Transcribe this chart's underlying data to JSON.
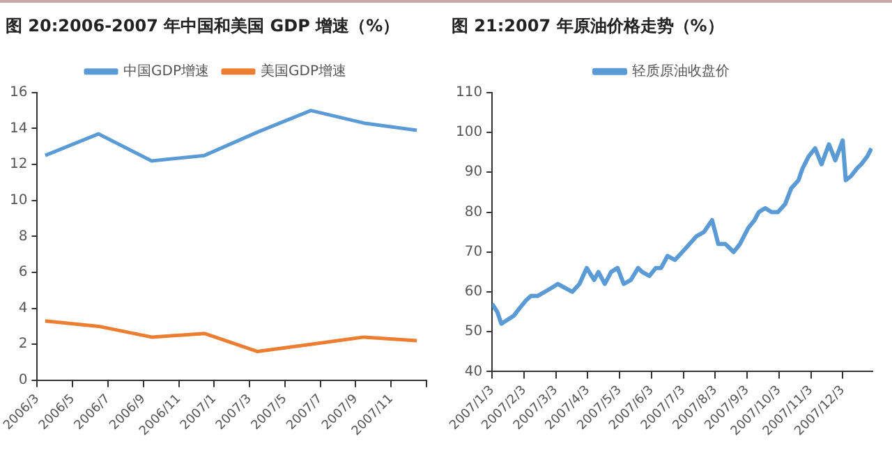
{
  "chart_data": [
    {
      "type": "line",
      "title": "图 20:2006-2007 年中国和美国 GDP 增速（%）",
      "legend": "top",
      "marker": "none",
      "grid": false,
      "x": [
        "2006-03-15",
        "2006-06-15",
        "2006-09-15",
        "2006-12-15",
        "2007-03-15",
        "2007-06-15",
        "2007-09-15",
        "2007-12-15"
      ],
      "series": [
        {
          "name": "中国GDP增速",
          "color": "#5b9bd5",
          "values": [
            12.5,
            13.7,
            12.2,
            12.5,
            13.8,
            15.0,
            14.3,
            13.9
          ]
        },
        {
          "name": "美国GDP增速",
          "color": "#ed7d31",
          "values": [
            3.3,
            3.0,
            2.4,
            2.6,
            1.6,
            2.0,
            2.4,
            2.2
          ]
        }
      ],
      "xlim": [
        "2006-03-01",
        "2008-01-01"
      ],
      "xticks": [
        {
          "value": "2006-03-01",
          "label": "2006/3"
        },
        {
          "value": "2006-05-01",
          "label": "2006/5"
        },
        {
          "value": "2006-07-01",
          "label": "2006/7"
        },
        {
          "value": "2006-09-01",
          "label": "2006/9"
        },
        {
          "value": "2006-11-01",
          "label": "2006/11"
        },
        {
          "value": "2007-01-01",
          "label": "2007/1"
        },
        {
          "value": "2007-03-01",
          "label": "2007/3"
        },
        {
          "value": "2007-05-01",
          "label": "2007/5"
        },
        {
          "value": "2007-07-01",
          "label": "2007/7"
        },
        {
          "value": "2007-09-01",
          "label": "2007/9"
        },
        {
          "value": "2007-11-01",
          "label": "2007/11"
        },
        {
          "value": "2008-01-01",
          "label": null
        }
      ],
      "ylim": [
        0,
        16
      ],
      "yticks": [
        0,
        2,
        4,
        6,
        8,
        10,
        12,
        14,
        16
      ]
    },
    {
      "type": "line",
      "title": "图 21:2007 年原油价格走势（%）",
      "legend": "top",
      "marker": "none",
      "grid": false,
      "x": [
        "2007-01-03",
        "2007-01-08",
        "2007-01-12",
        "2007-01-18",
        "2007-01-24",
        "2007-01-30",
        "2007-02-05",
        "2007-02-09",
        "2007-02-15",
        "2007-02-21",
        "2007-02-27",
        "2007-03-05",
        "2007-03-12",
        "2007-03-19",
        "2007-03-26",
        "2007-04-02",
        "2007-04-09",
        "2007-04-13",
        "2007-04-19",
        "2007-04-25",
        "2007-05-01",
        "2007-05-07",
        "2007-05-14",
        "2007-05-21",
        "2007-05-25",
        "2007-06-01",
        "2007-06-07",
        "2007-06-12",
        "2007-06-18",
        "2007-06-25",
        "2007-07-02",
        "2007-07-09",
        "2007-07-16",
        "2007-07-23",
        "2007-07-31",
        "2007-08-06",
        "2007-08-13",
        "2007-08-21",
        "2007-08-27",
        "2007-09-04",
        "2007-09-10",
        "2007-09-14",
        "2007-09-20",
        "2007-09-26",
        "2007-10-02",
        "2007-10-09",
        "2007-10-15",
        "2007-10-22",
        "2007-10-26",
        "2007-11-01",
        "2007-11-07",
        "2007-11-13",
        "2007-11-20",
        "2007-11-26",
        "2007-12-03",
        "2007-12-06",
        "2007-12-11",
        "2007-12-17",
        "2007-12-21",
        "2007-12-27",
        "2007-12-31"
      ],
      "series": [
        {
          "name": "轻质原油收盘价",
          "color": "#5b9bd5",
          "values": [
            57,
            55,
            52,
            53,
            54,
            56,
            58,
            59,
            59,
            60,
            61,
            62,
            61,
            60,
            62,
            66,
            63,
            65,
            62,
            65,
            66,
            62,
            63,
            66,
            65,
            64,
            66,
            66,
            69,
            68,
            70,
            72,
            74,
            75,
            78,
            72,
            72,
            70,
            72,
            76,
            78,
            80,
            81,
            80,
            80,
            82,
            86,
            88,
            91,
            94,
            96,
            92,
            97,
            93,
            98,
            88,
            89,
            91,
            92,
            94,
            96
          ]
        }
      ],
      "xlim": [
        "2007-01-03",
        "2008-01-01"
      ],
      "xticks": [
        {
          "value": "2007-01-03",
          "label": "2007/1/3"
        },
        {
          "value": "2007-02-03",
          "label": "2007/2/3"
        },
        {
          "value": "2007-03-03",
          "label": "2007/3/3"
        },
        {
          "value": "2007-04-03",
          "label": "2007/4/3"
        },
        {
          "value": "2007-05-03",
          "label": "2007/5/3"
        },
        {
          "value": "2007-06-03",
          "label": "2007/6/3"
        },
        {
          "value": "2007-07-03",
          "label": "2007/7/3"
        },
        {
          "value": "2007-08-03",
          "label": "2007/8/3"
        },
        {
          "value": "2007-09-03",
          "label": "2007/9/3"
        },
        {
          "value": "2007-10-03",
          "label": "2007/10/3"
        },
        {
          "value": "2007-11-03",
          "label": "2007/11/3"
        },
        {
          "value": "2007-12-03",
          "label": "2007/12/3"
        }
      ],
      "ylim": [
        40,
        110
      ],
      "yticks": [
        40,
        50,
        60,
        70,
        80,
        90,
        100,
        110
      ]
    }
  ]
}
